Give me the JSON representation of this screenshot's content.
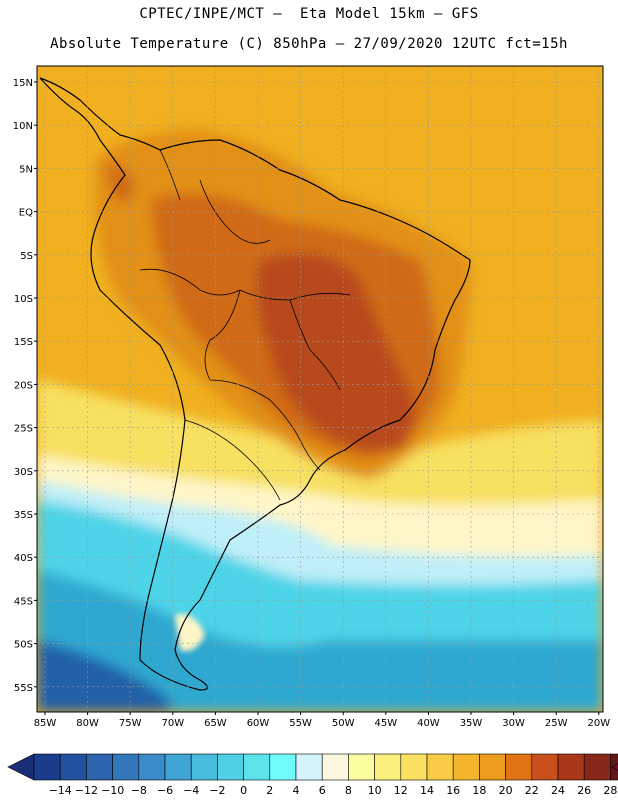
{
  "header": {
    "line1": "CPTEC/INPE/MCT –  Eta Model 15km – GFS",
    "line2": "Absolute Temperature (C) 850hPa – 27/09/2020 12UTC fct=15h"
  },
  "map": {
    "lat_labels": [
      "15N",
      "10N",
      "5N",
      "EQ",
      "5S",
      "10S",
      "15S",
      "20S",
      "25S",
      "30S",
      "35S",
      "40S",
      "45S",
      "50S",
      "55S"
    ],
    "lon_labels": [
      "85W",
      "80W",
      "75W",
      "70W",
      "65W",
      "60W",
      "55W",
      "50W",
      "45W",
      "40W",
      "35W",
      "30W",
      "25W",
      "20W"
    ],
    "colors": {
      "ocean_warm": "#f0b020",
      "land_warm": "#e29018",
      "land_hot": "#d06a14",
      "land_very_hot": "#b8481a",
      "mild": "#f8e060",
      "pale": "#fff6c8",
      "cool": "#bfeff8",
      "cold": "#4dd4e8",
      "colder": "#2fa8d0",
      "coldest": "#2060a8"
    }
  },
  "colorbar": {
    "labels": [
      "-14",
      "-12",
      "-10",
      "-8",
      "-6",
      "-4",
      "-2",
      "0",
      "2",
      "4",
      "6",
      "8",
      "10",
      "12",
      "14",
      "16",
      "18",
      "20",
      "22",
      "24",
      "26",
      "28"
    ],
    "colors": [
      "#1a3c8c",
      "#2450a0",
      "#2c64b0",
      "#3478bc",
      "#3a8cc8",
      "#40a4d4",
      "#48bcdc",
      "#50d0e4",
      "#5ce4ec",
      "#70fcfc",
      "#d4f4fc",
      "#fcf8e0",
      "#fcfca0",
      "#fcf07c",
      "#fce060",
      "#f8cc44",
      "#f4b42c",
      "#ec9c1c",
      "#e07414",
      "#c8501c",
      "#a83818",
      "#882818",
      "#601818"
    ],
    "under_color": "#1a2e78",
    "over_color": "#701020"
  }
}
